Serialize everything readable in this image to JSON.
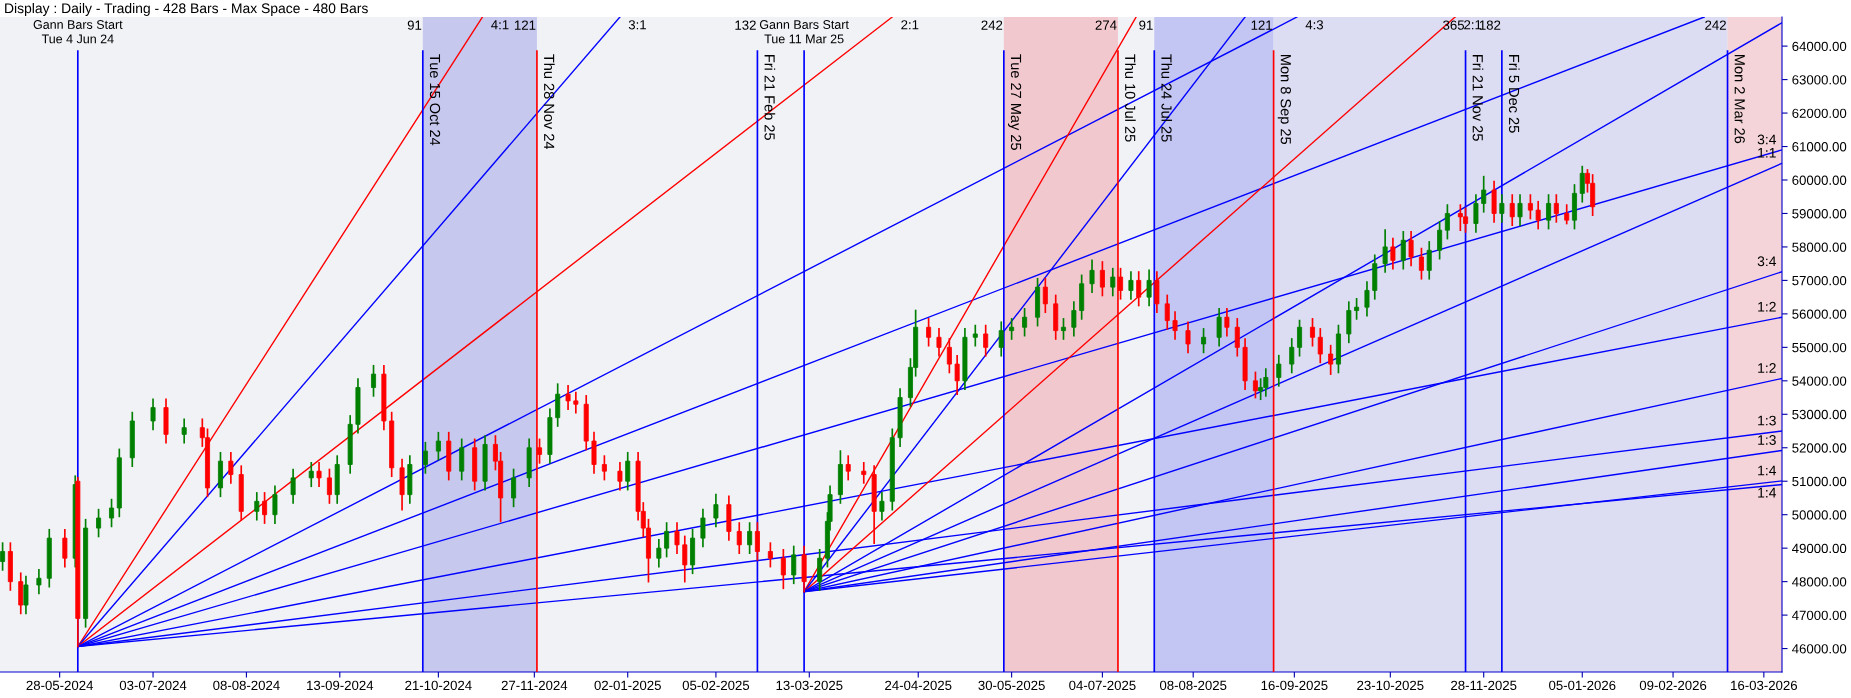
{
  "chart_data": {
    "type": "candlestick",
    "title": "Display : Daily - Trading - 428 Bars - Max Space - 480 Bars",
    "x": [
      "2024-05-06",
      "2024-05-09",
      "2024-05-13",
      "2024-05-15",
      "2024-05-20",
      "2024-05-24",
      "2024-05-30",
      "2024-06-03",
      "2024-06-04",
      "2024-06-07",
      "2024-06-12",
      "2024-06-17",
      "2024-06-20",
      "2024-06-25",
      "2024-07-03",
      "2024-07-08",
      "2024-07-15",
      "2024-07-22",
      "2024-07-24",
      "2024-07-29",
      "2024-08-02",
      "2024-08-06",
      "2024-08-12",
      "2024-08-15",
      "2024-08-19",
      "2024-08-26",
      "2024-09-02",
      "2024-09-05",
      "2024-09-09",
      "2024-09-12",
      "2024-09-17",
      "2024-09-20",
      "2024-09-26",
      "2024-09-30",
      "2024-10-03",
      "2024-10-07",
      "2024-10-10",
      "2024-10-16",
      "2024-10-21",
      "2024-10-25",
      "2024-10-30",
      "2024-11-04",
      "2024-11-08",
      "2024-11-12",
      "2024-11-14",
      "2024-11-19",
      "2024-11-25",
      "2024-11-29",
      "2024-12-03",
      "2024-12-06",
      "2024-12-10",
      "2024-12-13",
      "2024-12-17",
      "2024-12-20",
      "2024-12-24",
      "2024-12-30",
      "2025-01-02",
      "2025-01-06",
      "2025-01-08",
      "2025-01-10",
      "2025-01-14",
      "2025-01-17",
      "2025-01-21",
      "2025-01-24",
      "2025-01-27",
      "2025-01-31",
      "2025-02-05",
      "2025-02-10",
      "2025-02-14",
      "2025-02-18",
      "2025-02-21",
      "2025-02-26",
      "2025-03-03",
      "2025-03-07",
      "2025-03-11",
      "2025-03-17",
      "2025-03-20",
      "2025-03-21",
      "2025-03-25",
      "2025-03-28",
      "2025-04-03",
      "2025-04-07",
      "2025-04-10",
      "2025-04-14",
      "2025-04-17",
      "2025-04-21",
      "2025-04-23",
      "2025-04-28",
      "2025-05-02",
      "2025-05-06",
      "2025-05-09",
      "2025-05-12",
      "2025-05-16",
      "2025-05-20",
      "2025-05-26",
      "2025-05-30",
      "2025-06-04",
      "2025-06-09",
      "2025-06-12",
      "2025-06-16",
      "2025-06-19",
      "2025-06-23",
      "2025-06-26",
      "2025-06-30",
      "2025-07-04",
      "2025-07-08",
      "2025-07-11",
      "2025-07-15",
      "2025-07-18",
      "2025-07-22",
      "2025-07-25",
      "2025-07-29",
      "2025-08-01",
      "2025-08-06",
      "2025-08-12",
      "2025-08-18",
      "2025-08-21",
      "2025-08-25",
      "2025-08-28",
      "2025-09-01",
      "2025-09-03",
      "2025-09-05",
      "2025-09-10",
      "2025-09-15",
      "2025-09-18",
      "2025-09-23",
      "2025-09-26",
      "2025-09-30",
      "2025-10-03",
      "2025-10-07",
      "2025-10-10",
      "2025-10-14",
      "2025-10-17",
      "2025-10-21",
      "2025-10-24",
      "2025-10-28",
      "2025-10-31",
      "2025-11-04",
      "2025-11-07",
      "2025-11-11",
      "2025-11-14",
      "2025-11-19",
      "2025-11-21",
      "2025-11-25",
      "2025-11-28",
      "2025-12-02",
      "2025-12-05",
      "2025-12-09",
      "2025-12-12",
      "2025-12-16",
      "2025-12-19",
      "2025-12-23",
      "2025-12-26",
      "2025-12-30",
      "2026-01-02",
      "2026-01-05",
      "2026-01-07",
      "2026-01-09"
    ],
    "ohlc": [
      [
        48600,
        49150,
        48350,
        48900
      ],
      [
        48900,
        49150,
        47750,
        48000
      ],
      [
        48000,
        48250,
        47050,
        47300
      ],
      [
        47300,
        48150,
        47050,
        47900
      ],
      [
        47900,
        48350,
        47650,
        48100
      ],
      [
        48100,
        49550,
        47850,
        49300
      ],
      [
        49300,
        49550,
        48450,
        48700
      ],
      [
        48700,
        51150,
        48450,
        50900
      ],
      [
        51000,
        51100,
        46060,
        46900
      ],
      [
        46900,
        49850,
        46650,
        49600
      ],
      [
        49600,
        50150,
        49350,
        49900
      ],
      [
        49900,
        50450,
        49650,
        50200
      ],
      [
        50200,
        51950,
        49950,
        51700
      ],
      [
        51700,
        53050,
        51450,
        52800
      ],
      [
        52800,
        53450,
        52550,
        53200
      ],
      [
        53200,
        53450,
        52150,
        52400
      ],
      [
        52400,
        52850,
        52150,
        52600
      ],
      [
        52600,
        52850,
        52050,
        52300
      ],
      [
        52300,
        52550,
        50550,
        50800
      ],
      [
        50800,
        51850,
        50550,
        51600
      ],
      [
        51600,
        51850,
        50950,
        51200
      ],
      [
        51200,
        51450,
        49850,
        50100
      ],
      [
        50100,
        50650,
        49850,
        50400
      ],
      [
        50400,
        50650,
        49750,
        50000
      ],
      [
        50000,
        50850,
        49750,
        50600
      ],
      [
        50600,
        51350,
        50350,
        51100
      ],
      [
        51100,
        51550,
        50850,
        51300
      ],
      [
        51300,
        51550,
        50850,
        51100
      ],
      [
        51100,
        51350,
        50350,
        50600
      ],
      [
        50600,
        51750,
        50350,
        51500
      ],
      [
        51500,
        52950,
        51250,
        52700
      ],
      [
        52700,
        54050,
        52450,
        53800
      ],
      [
        53800,
        54450,
        53550,
        54200
      ],
      [
        54200,
        54450,
        52550,
        52800
      ],
      [
        52800,
        53050,
        51150,
        51400
      ],
      [
        51400,
        51650,
        50150,
        50600
      ],
      [
        50600,
        51750,
        50350,
        51500
      ],
      [
        51500,
        52150,
        51250,
        51900
      ],
      [
        51900,
        52450,
        51650,
        52200
      ],
      [
        52200,
        52450,
        51050,
        51300
      ],
      [
        51300,
        52250,
        51050,
        52000
      ],
      [
        52000,
        52250,
        50750,
        51000
      ],
      [
        51000,
        52350,
        50750,
        52100
      ],
      [
        52100,
        52350,
        51350,
        51600
      ],
      [
        51600,
        51850,
        49800,
        50500
      ],
      [
        50500,
        51350,
        50250,
        51100
      ],
      [
        51100,
        52250,
        50850,
        52000
      ],
      [
        52000,
        52250,
        51550,
        51800
      ],
      [
        51800,
        53150,
        51550,
        52900
      ],
      [
        52900,
        53900,
        52650,
        53600
      ],
      [
        53600,
        53850,
        53150,
        53400
      ],
      [
        53400,
        53650,
        53050,
        53300
      ],
      [
        53300,
        53550,
        51950,
        52200
      ],
      [
        52200,
        52450,
        51250,
        51500
      ],
      [
        51500,
        51750,
        51050,
        51300
      ],
      [
        51300,
        51550,
        50750,
        51000
      ],
      [
        51000,
        51850,
        50750,
        51600
      ],
      [
        51600,
        51850,
        49850,
        50100
      ],
      [
        50100,
        50350,
        49350,
        49600
      ],
      [
        49600,
        49850,
        48000,
        48700
      ],
      [
        48700,
        49250,
        48450,
        49000
      ],
      [
        49000,
        49750,
        48750,
        49500
      ],
      [
        49500,
        49750,
        48850,
        49100
      ],
      [
        49100,
        49350,
        48000,
        48500
      ],
      [
        48500,
        49550,
        48250,
        49300
      ],
      [
        49300,
        50150,
        49050,
        49900
      ],
      [
        49900,
        50600,
        49650,
        50300
      ],
      [
        50300,
        50550,
        49250,
        49500
      ],
      [
        49500,
        49750,
        48850,
        49100
      ],
      [
        49100,
        49750,
        48850,
        49500
      ],
      [
        49500,
        49750,
        48650,
        48900
      ],
      [
        48900,
        49150,
        48450,
        48700
      ],
      [
        48700,
        48950,
        47800,
        48200
      ],
      [
        48200,
        49050,
        47950,
        48800
      ],
      [
        48800,
        49050,
        47700,
        48000
      ],
      [
        48000,
        48950,
        47750,
        48700
      ],
      [
        48700,
        50050,
        48450,
        49800
      ],
      [
        49800,
        50850,
        49550,
        50600
      ],
      [
        50600,
        51900,
        50350,
        51500
      ],
      [
        51500,
        51750,
        51050,
        51300
      ],
      [
        51300,
        51550,
        50950,
        51200
      ],
      [
        51200,
        51450,
        49150,
        50100
      ],
      [
        50100,
        50650,
        49850,
        50400
      ],
      [
        50400,
        52550,
        50150,
        52300
      ],
      [
        52300,
        53750,
        52050,
        53500
      ],
      [
        53500,
        54650,
        53250,
        54400
      ],
      [
        54400,
        56100,
        54150,
        55600
      ],
      [
        55600,
        55850,
        55050,
        55300
      ],
      [
        55300,
        55550,
        54750,
        55000
      ],
      [
        55000,
        55250,
        54250,
        54500
      ],
      [
        54500,
        54750,
        53600,
        54000
      ],
      [
        54000,
        55550,
        53750,
        55300
      ],
      [
        55300,
        55650,
        55050,
        55400
      ],
      [
        55400,
        55650,
        54750,
        55000
      ],
      [
        55000,
        55750,
        54750,
        55500
      ],
      [
        55500,
        55850,
        55250,
        55600
      ],
      [
        55600,
        56150,
        55350,
        55900
      ],
      [
        55900,
        57050,
        55650,
        56800
      ],
      [
        56800,
        57050,
        56050,
        56300
      ],
      [
        56300,
        56550,
        55250,
        55500
      ],
      [
        55500,
        55850,
        55250,
        55600
      ],
      [
        55600,
        56350,
        55350,
        56100
      ],
      [
        56100,
        57150,
        55850,
        56900
      ],
      [
        56900,
        57600,
        56650,
        57300
      ],
      [
        57300,
        57550,
        56550,
        56800
      ],
      [
        56800,
        57350,
        56550,
        57100
      ],
      [
        57100,
        57350,
        56450,
        56700
      ],
      [
        56700,
        57250,
        56450,
        57000
      ],
      [
        57000,
        57250,
        56250,
        56500
      ],
      [
        56500,
        57300,
        56250,
        57000
      ],
      [
        57000,
        57250,
        56050,
        56300
      ],
      [
        56300,
        56550,
        55550,
        55800
      ],
      [
        55800,
        56050,
        55250,
        55500
      ],
      [
        55500,
        55750,
        54850,
        55100
      ],
      [
        55100,
        55550,
        54850,
        55300
      ],
      [
        55300,
        56150,
        55050,
        55900
      ],
      [
        55900,
        56150,
        55350,
        55600
      ],
      [
        55600,
        55850,
        54750,
        55000
      ],
      [
        55000,
        55250,
        53750,
        54000
      ],
      [
        54000,
        54250,
        53500,
        53700
      ],
      [
        53700,
        54050,
        53450,
        53800
      ],
      [
        53800,
        54350,
        53550,
        54100
      ],
      [
        54100,
        54750,
        53850,
        54500
      ],
      [
        54500,
        55250,
        54250,
        55000
      ],
      [
        55000,
        55800,
        54750,
        55600
      ],
      [
        55600,
        55850,
        55050,
        55300
      ],
      [
        55300,
        55550,
        54550,
        54800
      ],
      [
        54800,
        55050,
        54200,
        54500
      ],
      [
        54500,
        55650,
        54250,
        55400
      ],
      [
        55400,
        56350,
        55150,
        56100
      ],
      [
        56100,
        56450,
        55850,
        56200
      ],
      [
        56200,
        56950,
        55950,
        56700
      ],
      [
        56700,
        57750,
        56450,
        57500
      ],
      [
        57500,
        58500,
        57250,
        58000
      ],
      [
        58000,
        58250,
        57350,
        57600
      ],
      [
        57600,
        58450,
        57350,
        58200
      ],
      [
        58200,
        58450,
        57450,
        57700
      ],
      [
        57700,
        57950,
        57050,
        57300
      ],
      [
        57300,
        58150,
        57050,
        57900
      ],
      [
        57900,
        58750,
        57650,
        58500
      ],
      [
        58500,
        59250,
        58250,
        59000
      ],
      [
        59000,
        59250,
        58500,
        58900
      ],
      [
        58900,
        59150,
        58450,
        58700
      ],
      [
        58700,
        59550,
        58450,
        59300
      ],
      [
        59300,
        60100,
        59050,
        59700
      ],
      [
        59700,
        59950,
        58750,
        59000
      ],
      [
        59000,
        59550,
        58750,
        59300
      ],
      [
        59300,
        59550,
        58650,
        58900
      ],
      [
        58900,
        59550,
        58650,
        59300
      ],
      [
        59300,
        59550,
        58850,
        59100
      ],
      [
        59100,
        59350,
        58550,
        58800
      ],
      [
        58800,
        59550,
        58550,
        59300
      ],
      [
        59300,
        59550,
        58750,
        59000
      ],
      [
        59000,
        59250,
        58700,
        58800
      ],
      [
        58800,
        59850,
        58550,
        59600
      ],
      [
        59600,
        60400,
        59350,
        60200
      ],
      [
        60200,
        60300,
        59650,
        59900
      ],
      [
        59900,
        60150,
        58950,
        59200
      ]
    ],
    "colors": [
      "#008000",
      "#ff0000",
      "#ff0000",
      "#008000",
      "#008000",
      "#008000",
      "#ff0000",
      "#008000",
      "#ff0000",
      "#008000",
      "#008000",
      "#008000",
      "#008000",
      "#008000",
      "#008000",
      "#ff0000",
      "#008000",
      "#ff0000",
      "#ff0000",
      "#008000",
      "#ff0000",
      "#ff0000",
      "#008000",
      "#ff0000",
      "#008000",
      "#008000",
      "#008000",
      "#ff0000",
      "#ff0000",
      "#008000",
      "#008000",
      "#008000",
      "#008000",
      "#ff0000",
      "#ff0000",
      "#ff0000",
      "#008000",
      "#008000",
      "#008000",
      "#ff0000",
      "#008000",
      "#ff0000",
      "#008000",
      "#ff0000",
      "#ff0000",
      "#008000",
      "#008000",
      "#ff0000",
      "#008000",
      "#008000",
      "#ff0000",
      "#ff0000",
      "#ff0000",
      "#ff0000",
      "#ff0000",
      "#ff0000",
      "#008000",
      "#ff0000",
      "#ff0000",
      "#ff0000",
      "#008000",
      "#008000",
      "#ff0000",
      "#ff0000",
      "#008000",
      "#008000",
      "#008000",
      "#ff0000",
      "#ff0000",
      "#008000",
      "#ff0000",
      "#ff0000",
      "#ff0000",
      "#008000",
      "#ff0000",
      "#008000",
      "#008000",
      "#008000",
      "#008000",
      "#ff0000",
      "#ff0000",
      "#ff0000",
      "#008000",
      "#008000",
      "#008000",
      "#008000",
      "#008000",
      "#ff0000",
      "#ff0000",
      "#ff0000",
      "#ff0000",
      "#008000",
      "#008000",
      "#ff0000",
      "#008000",
      "#008000",
      "#008000",
      "#008000",
      "#ff0000",
      "#ff0000",
      "#008000",
      "#008000",
      "#008000",
      "#008000",
      "#ff0000",
      "#008000",
      "#ff0000",
      "#008000",
      "#ff0000",
      "#008000",
      "#ff0000",
      "#ff0000",
      "#ff0000",
      "#ff0000",
      "#008000",
      "#008000",
      "#ff0000",
      "#ff0000",
      "#ff0000",
      "#ff0000",
      "#008000",
      "#008000",
      "#008000",
      "#008000",
      "#008000",
      "#ff0000",
      "#ff0000",
      "#ff0000",
      "#008000",
      "#008000",
      "#008000",
      "#008000",
      "#008000",
      "#008000",
      "#ff0000",
      "#008000",
      "#ff0000",
      "#ff0000",
      "#008000",
      "#008000",
      "#008000",
      "#ff0000",
      "#ff0000",
      "#008000",
      "#008000",
      "#ff0000",
      "#008000",
      "#ff0000",
      "#008000",
      "#ff0000",
      "#ff0000",
      "#008000",
      "#ff0000",
      "#ff0000",
      "#008000",
      "#008000",
      "#ff0000",
      "#ff0000"
    ],
    "series": [
      {
        "type": "line",
        "color": "#ff0000",
        "x": [
          "2024-06-04",
          "2024-11-07"
        ],
        "values": [
          46060,
          64870
        ]
      },
      {
        "type": "line",
        "color": "#0000ff",
        "x": [
          "2024-06-04",
          "2024-12-30"
        ],
        "values": [
          46060,
          64870
        ]
      },
      {
        "type": "line",
        "color": "#ff0000",
        "x": [
          "2024-06-04",
          "2025-04-14"
        ],
        "values": [
          46060,
          64870
        ]
      },
      {
        "type": "line",
        "color": "#0000ff",
        "x": [
          "2024-06-04",
          "2025-09-17"
        ],
        "values": [
          46060,
          64870
        ]
      },
      {
        "type": "line",
        "color": "#0000ff",
        "x": [
          "2024-06-04",
          "2026-02-21"
        ],
        "values": [
          46060,
          64870
        ]
      },
      {
        "type": "line",
        "color": "#0000ff",
        "x": [
          "2024-06-04",
          "2026-03-23"
        ],
        "values": [
          46060,
          60900
        ]
      },
      {
        "type": "line",
        "color": "#0000ff",
        "x": [
          "2024-06-04",
          "2026-03-23"
        ],
        "values": [
          46060,
          55900
        ]
      },
      {
        "type": "line",
        "color": "#0000ff",
        "x": [
          "2024-06-04",
          "2026-03-23"
        ],
        "values": [
          46060,
          52500
        ]
      },
      {
        "type": "line",
        "color": "#0000ff",
        "x": [
          "2024-06-04",
          "2026-03-23"
        ],
        "values": [
          46060,
          50900
        ]
      },
      {
        "type": "line",
        "color": "#ff0000",
        "x": [
          "2025-03-11",
          "2025-07-17"
        ],
        "values": [
          47700,
          64870
        ]
      },
      {
        "type": "line",
        "color": "#0000ff",
        "x": [
          "2025-03-11",
          "2025-08-28"
        ],
        "values": [
          47700,
          64870
        ]
      },
      {
        "type": "line",
        "color": "#ff0000",
        "x": [
          "2025-03-11",
          "2025-11-17"
        ],
        "values": [
          47700,
          64870
        ]
      },
      {
        "type": "line",
        "color": "#0000ff",
        "x": [
          "2025-03-11",
          "2026-03-23"
        ],
        "values": [
          47700,
          64700
        ]
      },
      {
        "type": "line",
        "color": "#0000ff",
        "x": [
          "2025-03-11",
          "2026-03-23"
        ],
        "values": [
          47700,
          60500
        ]
      },
      {
        "type": "line",
        "color": "#0000ff",
        "x": [
          "2025-03-11",
          "2026-03-23"
        ],
        "values": [
          47700,
          57260
        ]
      },
      {
        "type": "line",
        "color": "#0000ff",
        "x": [
          "2025-03-11",
          "2026-03-23"
        ],
        "values": [
          47700,
          54070
        ]
      },
      {
        "type": "line",
        "color": "#0000ff",
        "x": [
          "2025-03-11",
          "2026-03-23"
        ],
        "values": [
          47700,
          51920
        ]
      },
      {
        "type": "line",
        "color": "#0000ff",
        "x": [
          "2025-03-11",
          "2026-03-23"
        ],
        "values": [
          47700,
          51010
        ]
      }
    ],
    "xlim": [
      "2024-05-05",
      "2026-03-23"
    ],
    "xticks": [
      {
        "value": "2024-05-28",
        "label": "28-05-2024"
      },
      {
        "value": "2024-07-03",
        "label": "03-07-2024"
      },
      {
        "value": "2024-08-08",
        "label": "08-08-2024"
      },
      {
        "value": "2024-09-13",
        "label": "13-09-2024"
      },
      {
        "value": "2024-10-21",
        "label": "21-10-2024"
      },
      {
        "value": "2024-11-27",
        "label": "27-11-2024"
      },
      {
        "value": "2025-01-02",
        "label": "02-01-2025"
      },
      {
        "value": "2025-02-05",
        "label": "05-02-2025"
      },
      {
        "value": "2025-03-13",
        "label": "13-03-2025"
      },
      {
        "value": "2025-04-24",
        "label": "24-04-2025"
      },
      {
        "value": "2025-05-30",
        "label": "30-05-2025"
      },
      {
        "value": "2025-07-04",
        "label": "04-07-2025"
      },
      {
        "value": "2025-08-08",
        "label": "08-08-2025"
      },
      {
        "value": "2025-09-16",
        "label": "16-09-2025"
      },
      {
        "value": "2025-10-23",
        "label": "23-10-2025"
      },
      {
        "value": "2025-11-28",
        "label": "28-11-2025"
      },
      {
        "value": "2026-01-05",
        "label": "05-01-2026"
      },
      {
        "value": "2026-02-09",
        "label": "09-02-2026"
      },
      {
        "value": "2026-03-16",
        "label": "16-03-2026"
      }
    ],
    "ylim": [
      45300,
      64870
    ],
    "yticks": [
      {
        "value": 46000,
        "label": "46000.00"
      },
      {
        "value": 47000,
        "label": "47000.00"
      },
      {
        "value": 48000,
        "label": "48000.00"
      },
      {
        "value": 49000,
        "label": "49000.00"
      },
      {
        "value": 50000,
        "label": "50000.00"
      },
      {
        "value": 51000,
        "label": "51000.00"
      },
      {
        "value": 52000,
        "label": "52000.00"
      },
      {
        "value": 53000,
        "label": "53000.00"
      },
      {
        "value": 54000,
        "label": "54000.00"
      },
      {
        "value": 55000,
        "label": "55000.00"
      },
      {
        "value": 56000,
        "label": "56000.00"
      },
      {
        "value": 57000,
        "label": "57000.00"
      },
      {
        "value": 58000,
        "label": "58000.00"
      },
      {
        "value": 59000,
        "label": "59000.00"
      },
      {
        "value": 60000,
        "label": "60000.00"
      },
      {
        "value": 61000,
        "label": "61000.00"
      },
      {
        "value": 62000,
        "label": "62000.00"
      },
      {
        "value": 63000,
        "label": "63000.00"
      },
      {
        "value": 64000,
        "label": "64000.00"
      }
    ],
    "bands": [
      {
        "axis": "x",
        "from": "2024-10-15",
        "to": "2024-11-28",
        "color": "#c6c8ee"
      },
      {
        "axis": "x",
        "from": "2025-05-27",
        "to": "2025-07-10",
        "color": "#f2c8cf"
      },
      {
        "axis": "x",
        "from": "2025-07-24",
        "to": "2025-09-08",
        "color": "#c3c5f3"
      },
      {
        "axis": "x",
        "from": "2025-09-08",
        "to": "2026-03-02",
        "color": "#dcdcf2"
      },
      {
        "axis": "x",
        "from": "2026-03-02",
        "to": "2026-03-23",
        "color": "#f4d4d8"
      }
    ],
    "ref_lines": [
      {
        "axis": "x",
        "value": "2024-06-04",
        "label": "Gann Bars Start\nTue 4 Jun 24",
        "color": "#0000ff"
      },
      {
        "axis": "x",
        "value": "2024-10-15",
        "label": "Tue 15 Oct 24",
        "color": "#0000ff"
      },
      {
        "axis": "x",
        "value": "2024-11-28",
        "label": "Thu 28 Nov 24",
        "color": "#ff0000"
      },
      {
        "axis": "x",
        "value": "2025-02-21",
        "label": "Fri 21 Feb 25",
        "color": "#0000ff"
      },
      {
        "axis": "x",
        "value": "2025-03-11",
        "label": "Gann Bars Start\nTue 11 Mar 25",
        "color": "#0000ff"
      },
      {
        "axis": "x",
        "value": "2025-05-27",
        "label": "Tue 27 May 25",
        "color": "#0000ff"
      },
      {
        "axis": "x",
        "value": "2025-07-10",
        "label": "Thu 10 Jul 25",
        "color": "#ff0000"
      },
      {
        "axis": "x",
        "value": "2025-07-24",
        "label": "Thu 24 Jul 25",
        "color": "#0000ff"
      },
      {
        "axis": "x",
        "value": "2025-09-08",
        "label": "Mon 8 Sep 25",
        "color": "#ff0000"
      },
      {
        "axis": "x",
        "value": "2025-11-21",
        "label": "Fri 21 Nov 25",
        "color": "#0000ff"
      },
      {
        "axis": "x",
        "value": "2025-12-05",
        "label": "Fri 5 Dec 25",
        "color": "#0000ff"
      },
      {
        "axis": "x",
        "value": "2026-03-02",
        "label": "Mon 2 Mar 26",
        "color": "#0000ff"
      }
    ],
    "annotations": [
      {
        "text": "91",
        "x": "2024-10-15",
        "y": 63850
      },
      {
        "text": "4:1",
        "x": "2024-11-07",
        "y": 64870
      },
      {
        "text": "121",
        "x": "2024-11-28",
        "y": 63850
      },
      {
        "text": "3:1",
        "x": "2024-12-30",
        "y": 64870
      },
      {
        "text": "132",
        "x": "2025-02-21",
        "y": 63850
      },
      {
        "text": "2:1",
        "x": "2025-04-14",
        "y": 64870
      },
      {
        "text": "242",
        "x": "2025-05-27",
        "y": 63850
      },
      {
        "text": "274",
        "x": "2025-07-10",
        "y": 63850
      },
      {
        "text": "91",
        "x": "2025-07-24",
        "y": 63850
      },
      {
        "text": "121",
        "x": "2025-09-08",
        "y": 63850
      },
      {
        "text": "4:3",
        "x": "2025-09-17",
        "y": 64870
      },
      {
        "text": "365",
        "x": "2025-11-21",
        "y": 63850
      },
      {
        "text": "2:1",
        "x": "2025-11-17",
        "y": 64870
      },
      {
        "text": "182",
        "x": "2025-12-05",
        "y": 63850
      },
      {
        "text": "242",
        "x": "2026-03-02",
        "y": 63850
      },
      {
        "text": "3:4",
        "x": "2026-03-23",
        "y": 60900
      },
      {
        "text": "1:1",
        "x": "2026-03-23",
        "y": 60500
      },
      {
        "text": "3:4",
        "x": "2026-03-23",
        "y": 57260
      },
      {
        "text": "1:2",
        "x": "2026-03-23",
        "y": 55900
      },
      {
        "text": "1:2",
        "x": "2026-03-23",
        "y": 54070
      },
      {
        "text": "1:3",
        "x": "2026-03-23",
        "y": 52500
      },
      {
        "text": "1:3",
        "x": "2026-03-23",
        "y": 51920
      },
      {
        "text": "1:4",
        "x": "2026-03-23",
        "y": 51010
      },
      {
        "text": "1:4",
        "x": "2026-03-23",
        "y": 50900
      }
    ]
  }
}
